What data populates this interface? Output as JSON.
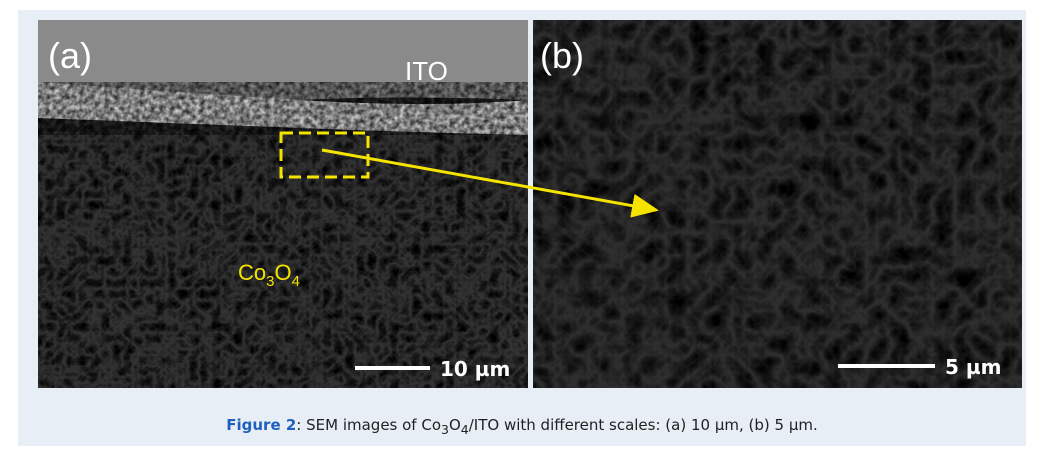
{
  "panels": [
    {
      "label": "(a)",
      "top_layer": "ITO",
      "material": [
        "Co",
        "3",
        "O",
        "4"
      ],
      "scale_bar": "10 µm"
    },
    {
      "label": "(b)",
      "scale_bar": "5 µm"
    }
  ],
  "caption": {
    "label": "Figure 2",
    "text": [
      ": SEM images of Co",
      "3",
      "O",
      "4",
      "/ITO with different scales: (a) 10 μm, (b) 5 μm."
    ]
  }
}
